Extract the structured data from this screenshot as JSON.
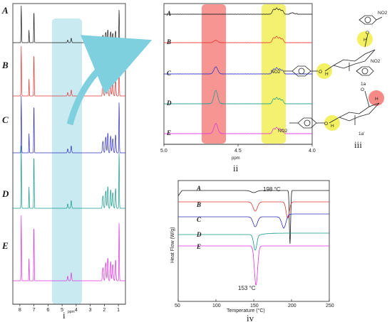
{
  "colors": {
    "A": "#1a1a1a",
    "B": "#e8332f",
    "C": "#2c2cc8",
    "D": "#129a8c",
    "E": "#e030e0",
    "highlight_blue": "#bfe6ee",
    "highlight_red": "#f58a86",
    "highlight_yellow": "#f3f061",
    "arrow": "#7fd0de"
  },
  "panels": {
    "i": "i",
    "ii": "ii",
    "iii": "iii",
    "iv": "iv"
  },
  "chart_data": [
    {
      "type": "line",
      "panel": "i",
      "xlabel": "ppm",
      "x_ticks": [
        8,
        7,
        6,
        5,
        4,
        3,
        2,
        1
      ],
      "xlim": [
        8.5,
        0.5
      ],
      "series": [
        {
          "name": "A"
        },
        {
          "name": "B"
        },
        {
          "name": "C"
        },
        {
          "name": "D"
        },
        {
          "name": "E"
        }
      ]
    },
    {
      "type": "line",
      "panel": "ii",
      "xlabel": "ppm",
      "x_ticks": [
        "5.0",
        "4.5",
        "4.0"
      ],
      "xlim": [
        5.0,
        4.0
      ],
      "series": [
        {
          "name": "A"
        },
        {
          "name": "B"
        },
        {
          "name": "C"
        },
        {
          "name": "D"
        },
        {
          "name": "E"
        }
      ]
    },
    {
      "type": "line",
      "panel": "iv",
      "xlabel": "Temperature (°C)",
      "ylabel": "Heat Flow (W/g)",
      "x_ticks": [
        50,
        100,
        150,
        200,
        250
      ],
      "xlim": [
        50,
        250
      ],
      "series": [
        {
          "name": "A",
          "peak_x": 198
        },
        {
          "name": "B",
          "peak_x": 195
        },
        {
          "name": "C",
          "peak_x": 190
        },
        {
          "name": "D",
          "peak_x": 152
        },
        {
          "name": "E",
          "peak_x": 153
        }
      ],
      "annotations": [
        {
          "text": "198 °C",
          "x": 198,
          "series": "A"
        },
        {
          "text": "153 °C",
          "x": 153,
          "series": "E"
        }
      ]
    }
  ],
  "molecules": {
    "label_1a": "1a",
    "label_1a_prime": "1a'",
    "nitro": "NO2",
    "oxygen": "O",
    "hydrogen": "H"
  }
}
